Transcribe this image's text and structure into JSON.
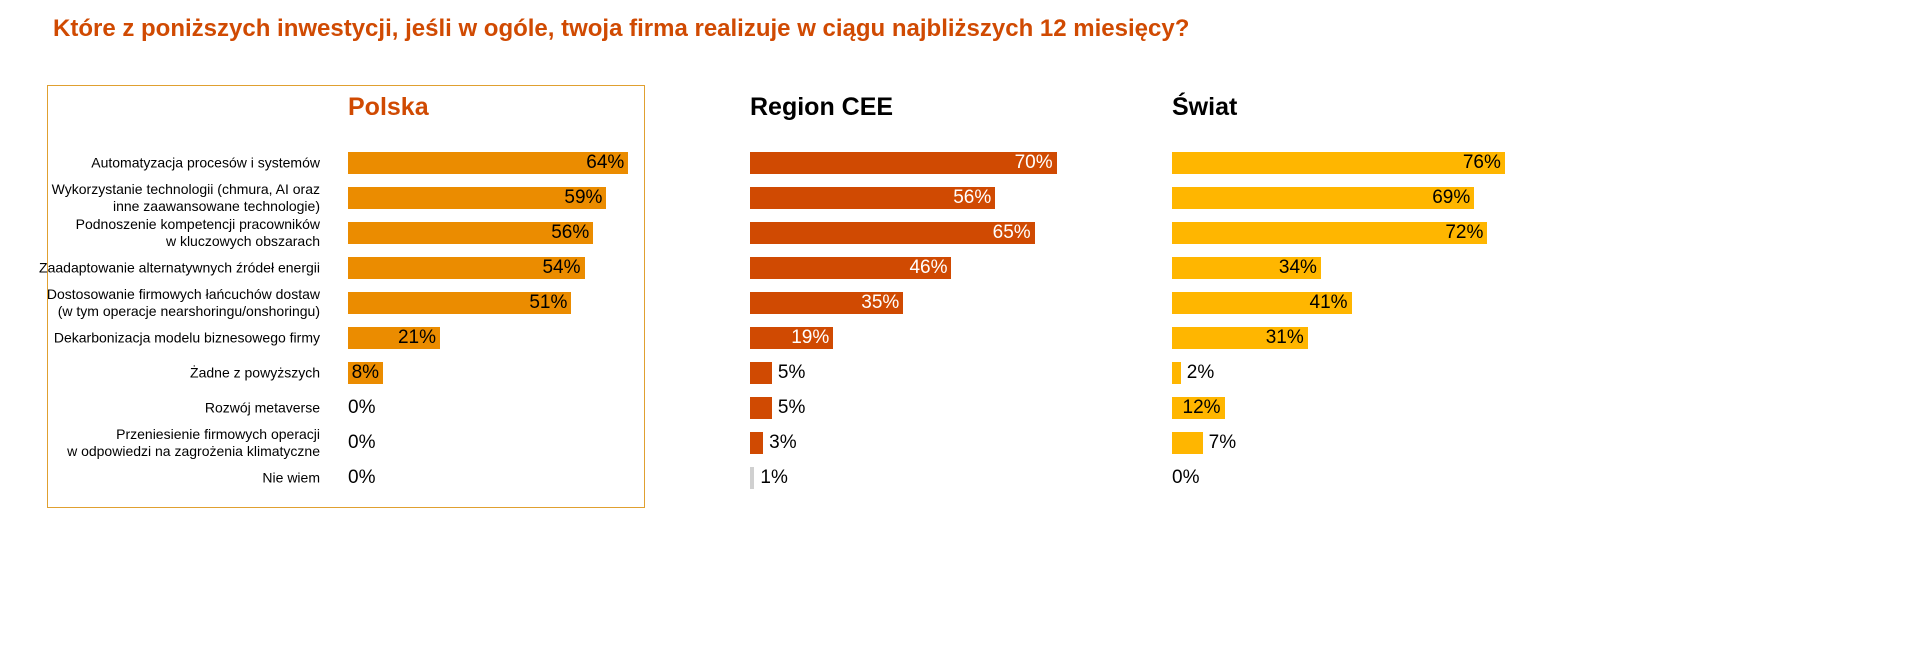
{
  "chart_data": {
    "type": "bar",
    "orientation": "horizontal",
    "title": "Które z poniższych inwestycji, jeśli w ogóle, twoja firma realizuje w ciągu najbliższych 12 miesięcy?",
    "categories": [
      "Automatyzacja procesów i systemów",
      "Wykorzystanie technologii (chmura, AI oraz\ninne zaawansowane technologie)",
      "Podnoszenie kompetencji pracowników\nw kluczowych obszarach",
      "Zaadaptowanie alternatywnych źródeł energii",
      "Dostosowanie firmowych łańcuchów dostaw\n(w tym operacje nearshoringu/onshoringu)",
      "Dekarbonizacja modelu biznesowego firmy",
      "Żadne z powyższych",
      "Rozwój metaverse",
      "Przeniesienie firmowych operacji\nw odpowiedzi na zagrożenia klimatyczne",
      "Nie wiem"
    ],
    "unit": "%",
    "series": [
      {
        "name": "Polska",
        "color": "#eb8c00",
        "label_color": "#000000",
        "header_color": "#d04a02",
        "values": [
          64,
          59,
          56,
          54,
          51,
          21,
          8,
          0,
          0,
          0
        ]
      },
      {
        "name": "Region CEE",
        "color": "#d04a02",
        "label_color": "#ffffff",
        "header_color": "#000000",
        "values": [
          70,
          56,
          65,
          46,
          35,
          19,
          5,
          5,
          3,
          1
        ]
      },
      {
        "name": "Świat",
        "color": "#ffb600",
        "label_color": "#000000",
        "header_color": "#000000",
        "values": [
          76,
          69,
          72,
          34,
          41,
          31,
          2,
          12,
          7,
          0
        ]
      }
    ],
    "neutral_category_color": "#d0d0d0",
    "xlim": [
      0,
      100
    ],
    "grid": false,
    "legend": "none"
  }
}
